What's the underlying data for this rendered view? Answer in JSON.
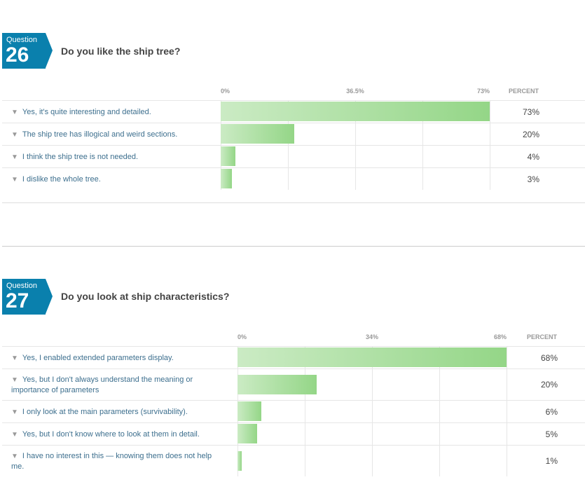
{
  "questions": [
    {
      "label": "Question",
      "number": "26",
      "title": "Do you like the ship tree?",
      "percent_header": "PERCENT",
      "answers": [
        {
          "text": "Yes, it's quite interesting and detailed.",
          "percent": "73%"
        },
        {
          "text": "The ship tree has illogical and weird sections.",
          "percent": "20%"
        },
        {
          "text": "I think the ship tree is not needed.",
          "percent": "4%"
        },
        {
          "text": "I dislike the whole tree.",
          "percent": "3%"
        }
      ]
    },
    {
      "label": "Question",
      "number": "27",
      "title": "Do you look at ship characteristics?",
      "percent_header": "PERCENT",
      "answers": [
        {
          "text": "Yes, I enabled extended parameters display.",
          "percent": "68%"
        },
        {
          "text": "Yes, but I don't always understand the meaning or importance of parameters",
          "percent": "20%"
        },
        {
          "text": "I only look at the main parameters (survivability).",
          "percent": "6%"
        },
        {
          "text": "Yes, but I don't know where to look at them in detail.",
          "percent": "5%"
        },
        {
          "text": "I have no interest in this — knowing them does not help me.",
          "percent": "1%"
        }
      ]
    }
  ],
  "chart_data": [
    {
      "type": "bar",
      "title": "Do you like the ship tree?",
      "categories": [
        "Yes, it's quite interesting and detailed.",
        "The ship tree has illogical and weird sections.",
        "I think the ship tree is not needed.",
        "I dislike the whole tree."
      ],
      "values": [
        73,
        20,
        4,
        3
      ],
      "ticks": [
        "0%",
        "36.5%",
        "73%"
      ],
      "xlim": [
        0,
        73
      ],
      "orientation": "horizontal",
      "grid": true,
      "bar_color": "#94d687"
    },
    {
      "type": "bar",
      "title": "Do you look at ship characteristics?",
      "categories": [
        "Yes, I enabled extended parameters display.",
        "Yes, but I don't always understand the meaning or importance of parameters",
        "I only look at the main parameters (survivability).",
        "Yes, but I don't know where to look at them in detail.",
        "I have no interest in this — knowing them does not help me."
      ],
      "values": [
        68,
        20,
        6,
        5,
        1
      ],
      "ticks": [
        "0%",
        "34%",
        "68%"
      ],
      "xlim": [
        0,
        68
      ],
      "orientation": "horizontal",
      "grid": true,
      "bar_color": "#94d687"
    }
  ],
  "colors": {
    "badge": "#0a80ad",
    "label_text": "#3d6f8e",
    "bar": "#94d687"
  },
  "icons": {
    "row": "filter-icon"
  }
}
